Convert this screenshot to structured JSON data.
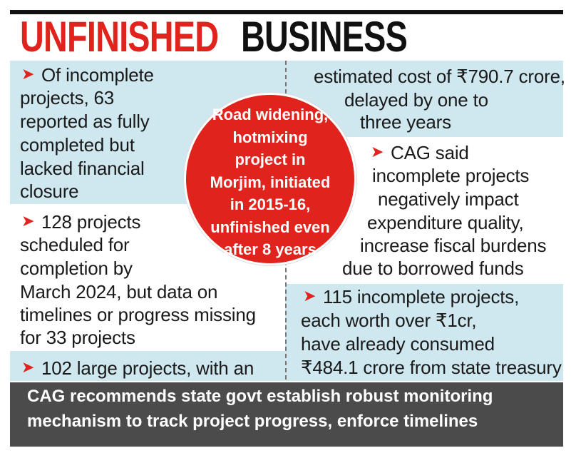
{
  "header": {
    "title_part1": "UNFINISHED",
    "title_part2": "BUSINESS"
  },
  "left_items": [
    {
      "lines": [
        "Of incomplete",
        "projects, 63",
        "reported as fully",
        "completed but",
        "lacked financial",
        "closure"
      ]
    },
    {
      "lines": [
        "128 projects",
        "scheduled for",
        "completion by",
        "March 2024, but data on",
        "timelines or progress missing",
        "for 33 projects"
      ]
    },
    {
      "lines": [
        "102 large projects, with an"
      ]
    }
  ],
  "right_items": [
    {
      "lines": [
        "estimated cost of ₹790.7 crore,",
        "delayed by one to",
        "three years"
      ]
    },
    {
      "lines": [
        "CAG said",
        "incomplete projects",
        "negatively impact",
        "expenditure quality,",
        "increase fiscal burdens",
        "due to borrowed funds"
      ]
    },
    {
      "lines": [
        "115 incomplete projects,",
        "each worth over ₹1cr,",
        "have already consumed",
        "₹484.1 crore from state treasury"
      ]
    }
  ],
  "callout": {
    "lines": [
      "Road widening,",
      "hotmixing",
      "project in",
      "Morjim, initiated",
      "in 2015-16,",
      "unfinished even",
      "after 8 years"
    ]
  },
  "footer": {
    "lines": [
      "CAG recommends state govt establish robust monitoring",
      "mechanism to track project progress, enforce timelines"
    ]
  }
}
